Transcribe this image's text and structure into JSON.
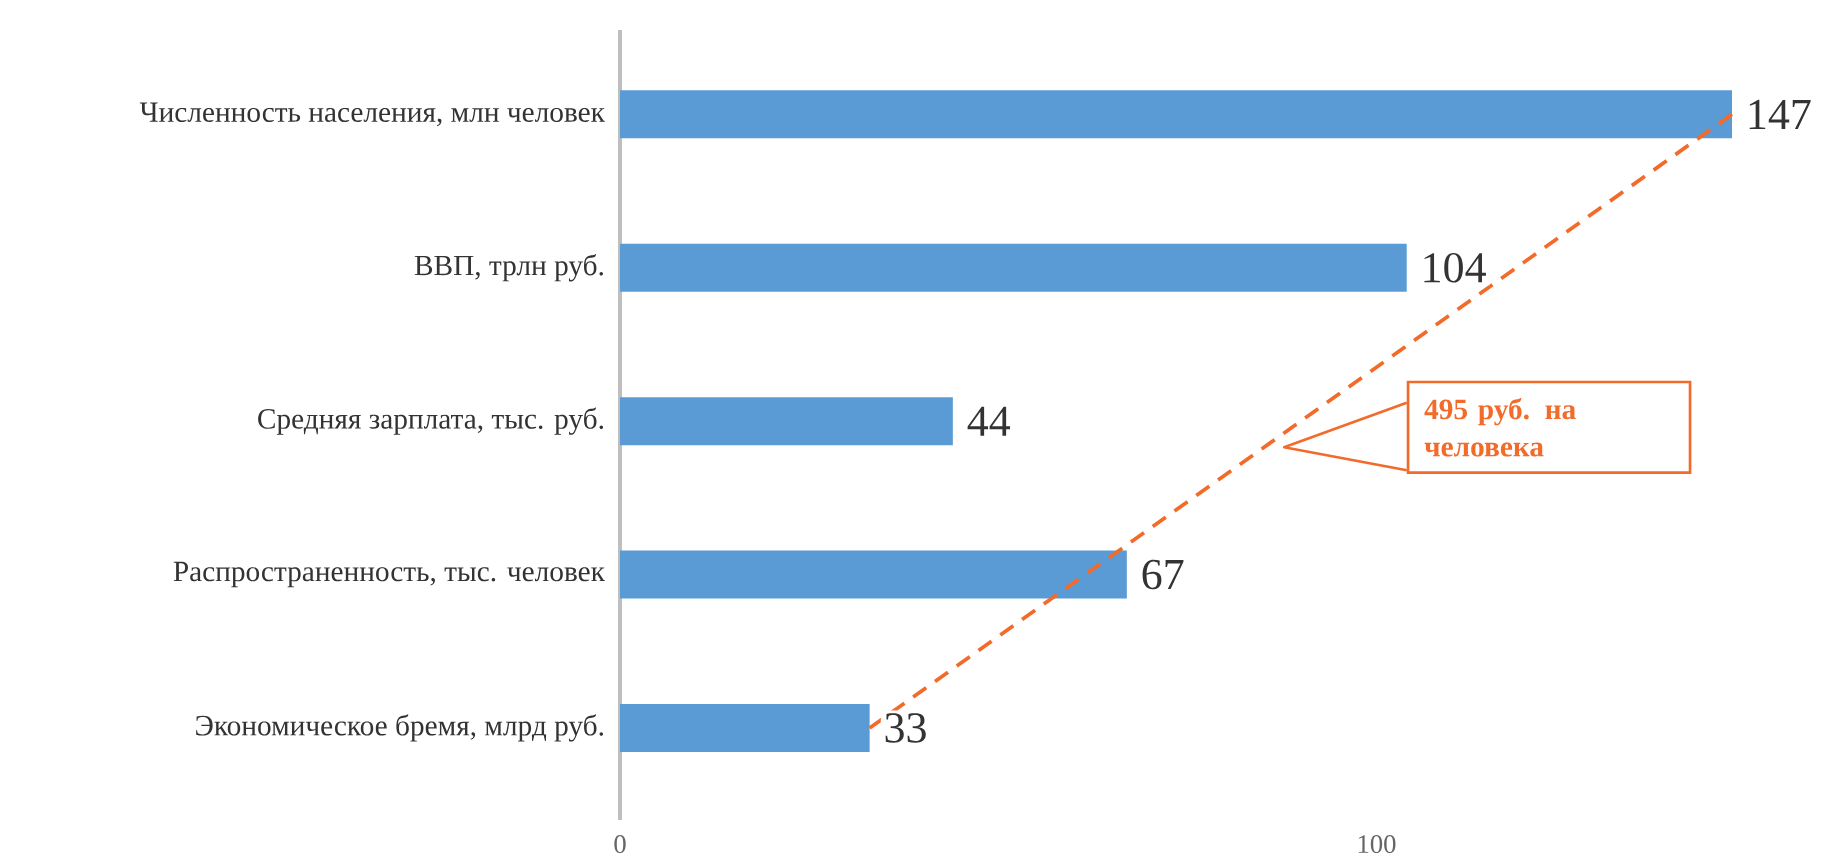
{
  "chart_data": {
    "type": "bar",
    "orientation": "horizontal",
    "categories": [
      "Численность населения, млн человек",
      "ВВП, трлн руб.",
      "Средняя зарплата, тыс. руб.",
      "Распространенность, тыс. человек",
      "Экономическое бремя, млрд руб."
    ],
    "series": [
      {
        "type": "bar",
        "color": "#5b9bd5",
        "values": [
          147,
          104,
          44,
          67,
          33
        ],
        "value_labels": [
          "147",
          "104",
          "44",
          "67",
          "33"
        ]
      },
      {
        "type": "line",
        "color": "#f26b2a",
        "line_style": "dashed",
        "values": [
          147,
          null,
          null,
          null,
          33
        ]
      }
    ],
    "xlim": [
      0,
      147
    ],
    "xticks": [
      0,
      100
    ],
    "annotations": [
      "495 руб. на человека"
    ]
  }
}
